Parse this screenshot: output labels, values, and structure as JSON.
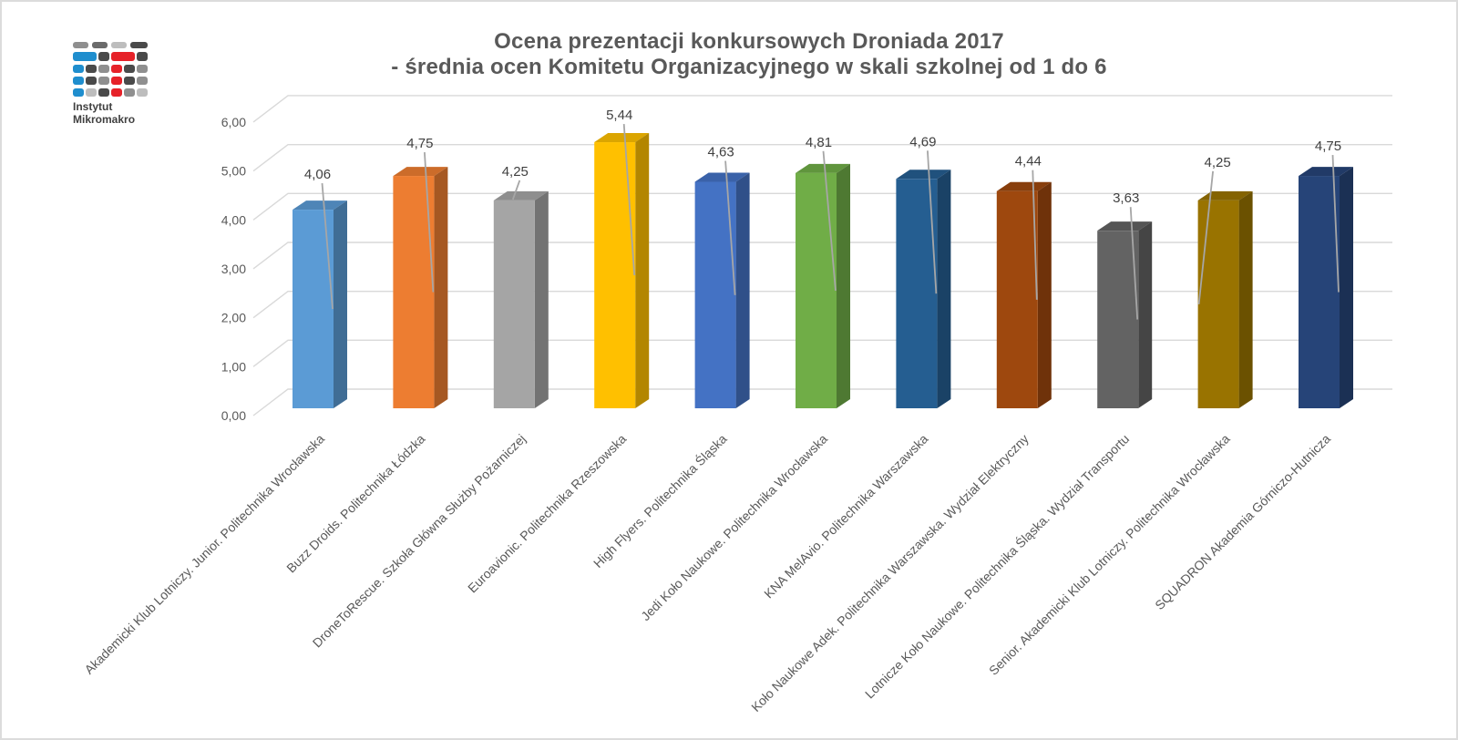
{
  "frame": {
    "border_color": "#dcdcdc",
    "background": "#ffffff"
  },
  "logo": {
    "line1": "Instytut",
    "line2": "Mikromakro",
    "colors": {
      "blue": "#1f8ece",
      "red": "#e62229",
      "dark": "#4a4a4a",
      "gray": "#8f8f8f",
      "light": "#bdbdbd",
      "mid": "#6b6b6b"
    }
  },
  "title": {
    "line1": "Ocena prezentacji konkursowych Droniada 2017",
    "line2": "- średnia ocen Komitetu Organizacyjnego w skali szkolnej od 1 do 6",
    "color": "#595959"
  },
  "chart_data": {
    "type": "bar",
    "style": "3d-column",
    "title": "Ocena prezentacji konkursowych Droniada 2017 - średnia ocen Komitetu Organizacyjnego w skali szkolnej od 1 do 6",
    "categories": [
      "Akademicki Klub Lotniczy. Junior. Politechnika Wrocławska",
      "Buzz Droids. Politechnika Łódzka",
      "DroneToRescue. Szkoła Główna Służby Pożarniczej",
      "Euroavionic. Politechnika Rzeszowska",
      "High Flyers. Politechnika Śląska",
      "Jedi Koło Naukowe. Politechnika Wrocławska",
      "KNA MelAvio. Politechnika Warszawska",
      "Koło Naukowe Adek. Politechnika Warszawska. Wydział Elektryczny",
      "Lotnicze Koło Naukowe. Politechnika Śląska. Wydział Transportu",
      "Senior. Akademicki Klub Lotniczy. Politechnika Wrocławska",
      "SQUADRON Akademia Górniczo-Hutnicza"
    ],
    "values": [
      4.06,
      4.75,
      4.25,
      5.44,
      4.63,
      4.81,
      4.69,
      4.44,
      3.63,
      4.25,
      4.75
    ],
    "value_labels": [
      "4,06",
      "4,75",
      "4,25",
      "5,44",
      "4,63",
      "4,81",
      "4,69",
      "4,44",
      "3,63",
      "4,25",
      "4,75"
    ],
    "bar_colors": [
      "#5b9bd5",
      "#ed7d31",
      "#a5a5a5",
      "#ffc000",
      "#4472c4",
      "#70ad47",
      "#255e91",
      "#9e480e",
      "#636363",
      "#997300",
      "#264478"
    ],
    "y_axis": {
      "min": 0,
      "max": 6,
      "step": 1,
      "tick_labels": [
        "0,00",
        "1,00",
        "2,00",
        "3,00",
        "4,00",
        "5,00",
        "6,00"
      ]
    },
    "xlabel": "",
    "ylabel": "",
    "grid": "on",
    "gridline_color": "#d9d9d9",
    "leader_line_color": "#a6a6a6",
    "data_label_color": "#404040",
    "axis_text_color": "#595959",
    "legend_position": "none"
  }
}
